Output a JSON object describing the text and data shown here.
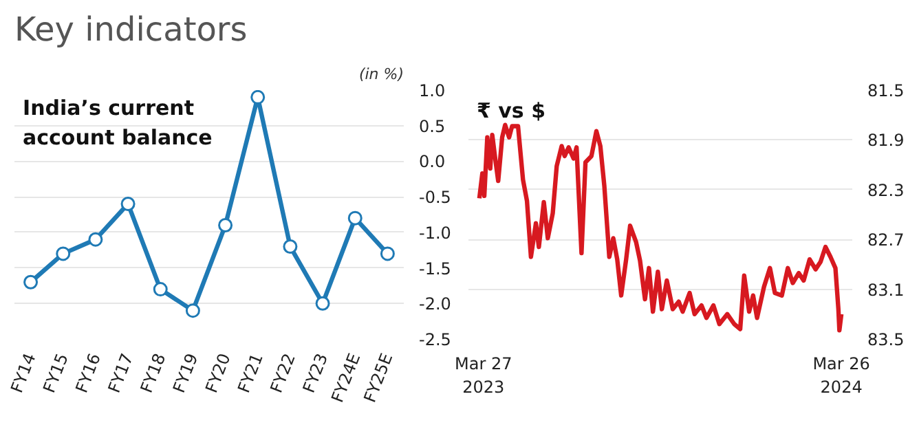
{
  "chart_data": [
    {
      "type": "line",
      "title": "Key indicators",
      "subtitle": "India’s current account balance",
      "ylabel": "(in %)",
      "categories": [
        "FY14",
        "FY15",
        "FY16",
        "FY17",
        "FY18",
        "FY19",
        "FY20",
        "FY21",
        "FY22",
        "FY23",
        "FY24E",
        "FY25E"
      ],
      "series": [
        {
          "color": "#1f7ab5",
          "values": [
            -1.7,
            -1.3,
            -1.1,
            -0.6,
            -1.8,
            -2.1,
            -0.9,
            0.9,
            -1.2,
            -2.0,
            -0.8,
            -1.3
          ]
        }
      ],
      "ylim": [
        -2.5,
        1.0
      ],
      "yticks": [
        {
          "value": 1.0,
          "label": "1.0"
        },
        0.5,
        {
          "value": 0.0,
          "label": "0.0"
        },
        -0.5,
        {
          "value": -1.0,
          "label": "-1.0"
        },
        -1.5,
        {
          "value": -2.0,
          "label": "-2.0"
        },
        -2.5
      ],
      "grid": "y",
      "marker": "circle",
      "line_style": "solid"
    },
    {
      "type": "line",
      "title": "₹ vs $",
      "x": [
        "2023-03-27",
        "2023-03-30",
        "2023-04-01",
        "2023-04-04",
        "2023-04-07",
        "2023-04-09",
        "2023-04-12",
        "2023-04-15",
        "2023-04-19",
        "2023-04-22",
        "2023-04-26",
        "2023-04-29",
        "2023-05-05",
        "2023-05-10",
        "2023-05-14",
        "2023-05-18",
        "2023-05-23",
        "2023-05-26",
        "2023-05-31",
        "2023-06-04",
        "2023-06-09",
        "2023-06-13",
        "2023-06-18",
        "2023-06-21",
        "2023-06-25",
        "2023-06-30",
        "2023-07-03",
        "2023-07-08",
        "2023-07-12",
        "2023-07-18",
        "2023-07-23",
        "2023-07-27",
        "2023-07-31",
        "2023-08-05",
        "2023-08-09",
        "2023-08-13",
        "2023-08-17",
        "2023-08-22",
        "2023-08-26",
        "2023-09-01",
        "2023-09-05",
        "2023-09-10",
        "2023-09-14",
        "2023-09-18",
        "2023-09-23",
        "2023-09-27",
        "2023-10-02",
        "2023-10-08",
        "2023-10-14",
        "2023-10-18",
        "2023-10-25",
        "2023-10-30",
        "2023-11-06",
        "2023-11-11",
        "2023-11-18",
        "2023-11-24",
        "2023-12-02",
        "2023-12-09",
        "2023-12-15",
        "2023-12-19",
        "2023-12-24",
        "2023-12-28",
        "2024-01-01",
        "2024-01-08",
        "2024-01-14",
        "2024-01-19",
        "2024-01-26",
        "2024-02-01",
        "2024-02-06",
        "2024-02-12",
        "2024-02-17",
        "2024-02-23",
        "2024-02-29",
        "2024-03-05",
        "2024-03-10",
        "2024-03-15",
        "2024-03-20",
        "2024-03-23",
        "2024-03-24",
        "2024-03-26"
      ],
      "series": [
        {
          "color": "#d71920",
          "values": [
            82.37,
            82.17,
            82.35,
            81.88,
            82.13,
            81.86,
            82.05,
            82.23,
            81.88,
            81.78,
            81.88,
            81.79,
            81.79,
            82.22,
            82.39,
            82.84,
            82.57,
            82.76,
            82.4,
            82.69,
            82.49,
            82.11,
            81.95,
            82.03,
            81.96,
            82.05,
            81.96,
            82.81,
            82.08,
            82.03,
            81.83,
            81.95,
            82.27,
            82.84,
            82.69,
            82.86,
            83.15,
            82.86,
            82.59,
            82.72,
            82.87,
            83.18,
            82.93,
            83.28,
            82.96,
            83.26,
            83.03,
            83.26,
            83.2,
            83.28,
            83.13,
            83.3,
            83.23,
            83.33,
            83.23,
            83.38,
            83.3,
            83.38,
            83.42,
            82.99,
            83.28,
            83.15,
            83.33,
            83.08,
            82.93,
            83.13,
            83.15,
            82.93,
            83.05,
            82.97,
            83.03,
            82.86,
            82.94,
            82.88,
            82.76,
            82.84,
            82.93,
            83.26,
            83.43,
            83.3
          ]
        }
      ],
      "xlim": [
        "2023-03-16",
        "2024-04-06"
      ],
      "xticks": [
        {
          "value": "2023-03-27",
          "label": "Mar 27\n2023"
        },
        {
          "value": "2024-03-26",
          "label": "Mar 26\n2024"
        }
      ],
      "ylim": [
        83.5,
        81.5
      ],
      "yticks": [
        81.5,
        81.9,
        82.3,
        82.7,
        83.1,
        83.5
      ],
      "grid": "y",
      "marker": "none",
      "line_style": "solid"
    }
  ]
}
